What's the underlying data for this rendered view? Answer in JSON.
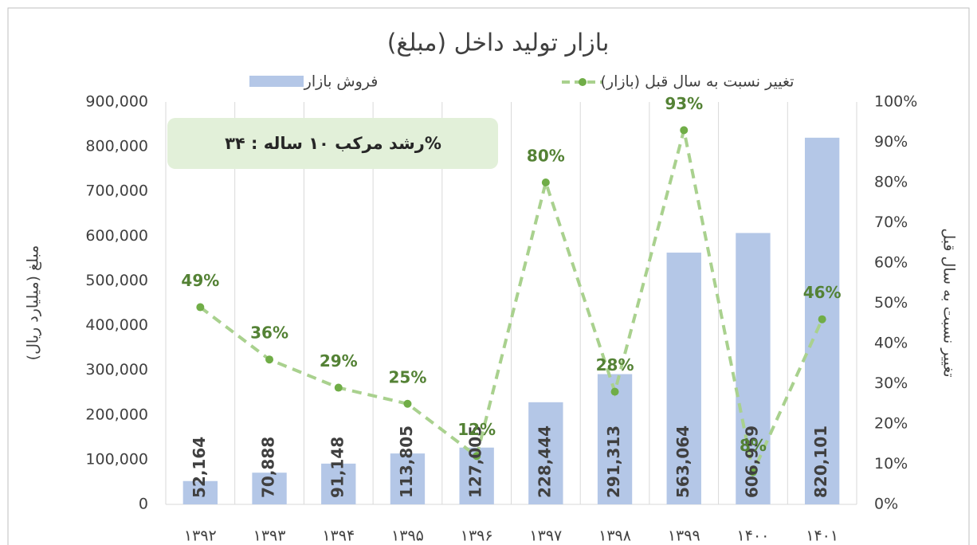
{
  "chart_data": {
    "type": "bar_line",
    "title": "بازار تولید داخل (مبلغ)",
    "annotation": "رشد مرکب ۱۰ ساله  :  ۳۴%",
    "y_label": "مبلغ (میلیارد ریال)",
    "y2_label": "تغییر نسبت به سال قبل",
    "categories": [
      "۱۳۹۲",
      "۱۳۹۳",
      "۱۳۹۴",
      "۱۳۹۵",
      "۱۳۹۶",
      "۱۳۹۷",
      "۱۳۹۸",
      "۱۳۹۹",
      "۱۴۰۰",
      "۱۴۰۱"
    ],
    "series": [
      {
        "name": "فروش بازار",
        "type": "bar",
        "axis": "y",
        "color": "#b4c7e7",
        "values": [
          52164,
          70888,
          91148,
          113805,
          127005,
          228444,
          291313,
          563064,
          606959,
          820101
        ],
        "value_labels": [
          "52,164",
          "70,888",
          "91,148",
          "113,805",
          "127,005",
          "228,444",
          "291,313",
          "563,064",
          "606,959",
          "820,101"
        ]
      },
      {
        "name": "تغییر نسبت به سال قبل (بازار)",
        "type": "line",
        "axis": "y2",
        "color": "#a9d18e",
        "marker_color": "#70ad47",
        "label_color": "#548235",
        "values": [
          49,
          36,
          29,
          25,
          12,
          80,
          28,
          93,
          8,
          46
        ],
        "value_labels": [
          "49%",
          "36%",
          "29%",
          "25%",
          "12%",
          "80%",
          "28%",
          "93%",
          "8%",
          "46%"
        ]
      }
    ],
    "ylim": [
      0,
      900000
    ],
    "yticks": [
      0,
      {
        "value": 100000,
        "label": "100,000"
      },
      {
        "value": 200000,
        "label": "200,000"
      },
      {
        "value": 300000,
        "label": "300,000"
      },
      {
        "value": 400000,
        "label": "400,000"
      },
      {
        "value": 500000,
        "label": "500,000"
      },
      {
        "value": 600000,
        "label": "600,000"
      },
      {
        "value": 700000,
        "label": "700,000"
      },
      {
        "value": 800000,
        "label": "800,000"
      },
      {
        "value": 900000,
        "label": "900,000"
      }
    ],
    "y2lim": [
      0,
      100
    ],
    "y2ticks": [
      {
        "value": 0,
        "label": "0%"
      },
      {
        "value": 10,
        "label": "10%"
      },
      {
        "value": 20,
        "label": "20%"
      },
      {
        "value": 30,
        "label": "30%"
      },
      {
        "value": 40,
        "label": "40%"
      },
      {
        "value": 50,
        "label": "50%"
      },
      {
        "value": 60,
        "label": "60%"
      },
      {
        "value": 70,
        "label": "70%"
      },
      {
        "value": 80,
        "label": "80%"
      },
      {
        "value": 90,
        "label": "90%"
      },
      {
        "value": 100,
        "label": "100%"
      }
    ],
    "grid": "vertical",
    "legend": "top"
  }
}
